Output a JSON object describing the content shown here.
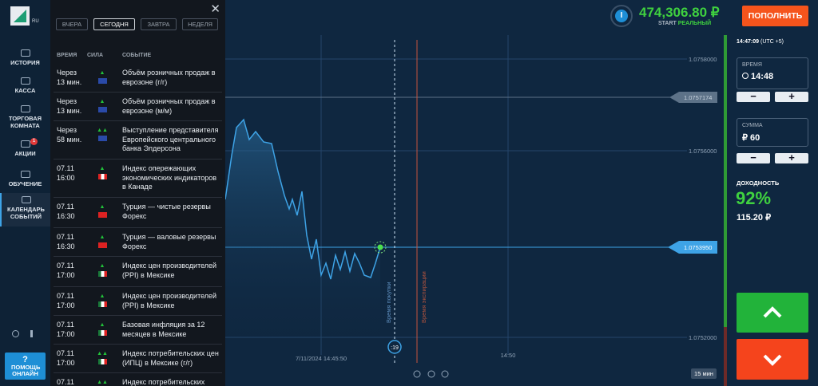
{
  "logo": {
    "suffix": "RU"
  },
  "sidebar": {
    "items": [
      "ИСТОРИЯ",
      "КАССА",
      "ТОРГОВАЯ КОМНАТА",
      "АКЦИИ",
      "ОБУЧЕНИЕ",
      "КАЛЕНДАРЬ СОБЫТИЙ"
    ],
    "badge": "1",
    "help_icon": "?",
    "help": "ПОМОЩЬ ОНЛАЙН"
  },
  "calendar": {
    "tabs": [
      "ВЧЕРА",
      "СЕГОДНЯ",
      "ЗАВТРА",
      "НЕДЕЛЯ"
    ],
    "columns": [
      "ВРЕМЯ",
      "СИЛА",
      "СОБЫТИЕ"
    ],
    "rows": [
      {
        "time": [
          "Через",
          "13 мин."
        ],
        "event": "Объём розничных продаж в еврозоне (г/г)"
      },
      {
        "time": [
          "Через",
          "13 мин."
        ],
        "event": "Объём розничных продаж в еврозоне (м/м)"
      },
      {
        "time": [
          "Через",
          "58 мин."
        ],
        "event": "Выступление представителя Европейского центрального банка Элдерсона"
      },
      {
        "time": [
          "07.11",
          "16:00"
        ],
        "event": "Индекс опережающих экономических индикаторов в Канаде"
      },
      {
        "time": [
          "07.11",
          "16:30"
        ],
        "event": "Турция — чистые резервы Форекс"
      },
      {
        "time": [
          "07.11",
          "16:30"
        ],
        "event": "Турция — валовые резервы Форекс"
      },
      {
        "time": [
          "07.11",
          "17:00"
        ],
        "event": "Индекс цен производителей (PPI) в Мексике"
      },
      {
        "time": [
          "07.11",
          "17:00"
        ],
        "event": "Индекс цен производителей (PPI) в Мексике"
      },
      {
        "time": [
          "07.11",
          "17:00"
        ],
        "event": "Базовая инфляция за 12 месяцев в Мексике"
      },
      {
        "time": [
          "07.11",
          "17:00"
        ],
        "event": "Индекс потребительских цен (ИПЦ) в Мексике (г/г)"
      },
      {
        "time": [
          "07.11",
          ""
        ],
        "event": "Индекс потребительских"
      }
    ]
  },
  "header": {
    "avatar": "I",
    "balance": "474,306.80 ₽",
    "account_type": "START",
    "account_mode": "РЕАЛЬНЫЙ",
    "deposit": "ПОПОЛНИТЬ"
  },
  "chart": {
    "prices": [
      "1.0758000",
      "1.0757174",
      "1.0756000",
      "1.0753950",
      "1.0752000"
    ],
    "start_time": "7/11/2024 14:45:50",
    "time_mark": "14:50",
    "buy_line": "Время покупки",
    "expiry_line": "Время экспирации",
    "timer": ":19",
    "timeframe": "15 мин"
  },
  "trade": {
    "clock": "14:47:09",
    "timezone": "(UTC +5)",
    "time_label": "ВРЕМЯ",
    "time": "14:48",
    "amount_label": "СУММА",
    "amount": "₽ 60",
    "profit_label": "ДОХОДНОСТЬ",
    "profit_percent": "92%",
    "profit_amount": "115.20 ₽"
  }
}
